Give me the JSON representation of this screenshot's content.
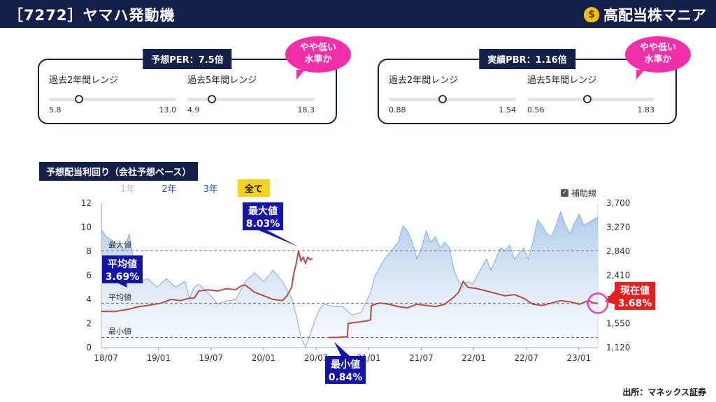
{
  "header": {
    "title": "［7272］ヤマハ発動機",
    "brand": "高配当株マニア",
    "brand_icon": "money-bag-icon"
  },
  "per_panel": {
    "title": "予想PER：7.5倍",
    "bubble": [
      "やや低い",
      "水準か"
    ],
    "ranges": [
      {
        "label": "過去2年間レンジ",
        "min": "5.8",
        "max": "13.0",
        "current": 7.5
      },
      {
        "label": "過去5年間レンジ",
        "min": "4.9",
        "max": "18.3",
        "current": 7.5
      }
    ]
  },
  "pbr_panel": {
    "title": "実績PBR：1.16倍",
    "bubble": [
      "やや低い",
      "水準か"
    ],
    "ranges": [
      {
        "label": "過去2年間レンジ",
        "min": "0.88",
        "max": "1.54",
        "current": 1.16
      },
      {
        "label": "過去5年間レンジ",
        "min": "0.56",
        "max": "1.83",
        "current": 1.16
      }
    ]
  },
  "chart_header": {
    "title": "予想配当利回り（会社予想ベース）",
    "tabs": [
      {
        "label": "1年",
        "state": "disabled"
      },
      {
        "label": "2年",
        "state": "normal"
      },
      {
        "label": "3年",
        "state": "normal"
      },
      {
        "label": "全て",
        "state": "active"
      }
    ],
    "aux_label": "補助線"
  },
  "chart_data": {
    "type": "line",
    "x_ticks": [
      "18/07",
      "19/01",
      "19/07",
      "20/01",
      "20/07",
      "21/01",
      "21/07",
      "22/01",
      "22/07",
      "23/01"
    ],
    "y_left_ticks": [
      "0",
      "2",
      "4",
      "6",
      "8",
      "10",
      "12"
    ],
    "y_right_ticks": [
      "1,120",
      "1,550",
      "1,980",
      "2,410",
      "2,840",
      "3,270",
      "3,700"
    ],
    "ylim_left": [
      0,
      12
    ],
    "ylim_right": [
      1120,
      3700
    ],
    "reference_lines": [
      {
        "label": "最大値",
        "value": 8.03
      },
      {
        "label": "平均値",
        "value": 3.69
      },
      {
        "label": "最小値",
        "value": 0.84
      }
    ],
    "series": [
      {
        "axis": "left",
        "color": "#b84a45",
        "points": [
          [
            0,
            3.0
          ],
          [
            3,
            3.0
          ],
          [
            6,
            3.2
          ],
          [
            8,
            3.4
          ],
          [
            10,
            3.5
          ],
          [
            13,
            3.7
          ],
          [
            15,
            4.0
          ],
          [
            17,
            3.9
          ],
          [
            19,
            4.1
          ],
          [
            20,
            4.1
          ],
          [
            21,
            4.7
          ],
          [
            23,
            4.8
          ],
          [
            25,
            4.7
          ],
          [
            27,
            4.9
          ],
          [
            29,
            4.8
          ],
          [
            30,
            5.1
          ],
          [
            31,
            5.2
          ],
          [
            33,
            4.6
          ],
          [
            35,
            4.3
          ],
          [
            37,
            4.0
          ],
          [
            39,
            3.9
          ],
          [
            40,
            4.3
          ],
          [
            41,
            5.0
          ],
          [
            41.5,
            6.2
          ],
          [
            42,
            7.0
          ],
          [
            42.5,
            8.03
          ],
          [
            43,
            7.2
          ],
          [
            43.5,
            7.5
          ],
          [
            44,
            7.0
          ],
          [
            44.5,
            7.5
          ],
          [
            45,
            7.3
          ],
          [
            45.5,
            7.4
          ],
          [
            null,
            null
          ],
          [
            49,
            0.84
          ],
          [
            51,
            0.84
          ],
          [
            53,
            0.9
          ],
          [
            53.2,
            2.0
          ],
          [
            55,
            2.1
          ],
          [
            57,
            2.2
          ],
          [
            58,
            2.3
          ],
          [
            58.2,
            3.5
          ],
          [
            60,
            3.7
          ],
          [
            62,
            3.6
          ],
          [
            64,
            3.4
          ],
          [
            66,
            3.3
          ],
          [
            68,
            3.6
          ],
          [
            70,
            3.5
          ],
          [
            72,
            3.4
          ],
          [
            74,
            3.6
          ],
          [
            76,
            4.2
          ],
          [
            77,
            4.6
          ],
          [
            78,
            5.5
          ],
          [
            79,
            5.0
          ],
          [
            81,
            4.9
          ],
          [
            83,
            4.7
          ],
          [
            85,
            4.5
          ],
          [
            87,
            4.3
          ],
          [
            89,
            4.4
          ],
          [
            91,
            4.1
          ],
          [
            93,
            3.6
          ],
          [
            95,
            3.5
          ],
          [
            97,
            3.7
          ],
          [
            99,
            3.9
          ],
          [
            101,
            3.8
          ],
          [
            103,
            3.6
          ],
          [
            105,
            3.9
          ],
          [
            106,
            3.7
          ],
          [
            107,
            3.68
          ]
        ]
      },
      {
        "axis": "right",
        "color": "#8ab8e3",
        "points": [
          [
            0,
            3230
          ],
          [
            1,
            3100
          ],
          [
            3,
            3000
          ],
          [
            5,
            2850
          ],
          [
            6,
            3150
          ],
          [
            7,
            2600
          ],
          [
            8,
            2300
          ],
          [
            10,
            2350
          ],
          [
            12,
            2200
          ],
          [
            14,
            2350
          ],
          [
            16,
            2200
          ],
          [
            18,
            2300
          ],
          [
            19,
            2000
          ],
          [
            20,
            2200
          ],
          [
            21,
            2250
          ],
          [
            23,
            2100
          ],
          [
            25,
            1900
          ],
          [
            27,
            1950
          ],
          [
            29,
            1980
          ],
          [
            31,
            2300
          ],
          [
            33,
            2450
          ],
          [
            35,
            2300
          ],
          [
            37,
            2500
          ],
          [
            39,
            2300
          ],
          [
            41,
            2000
          ],
          [
            42,
            1700
          ],
          [
            43,
            1300
          ],
          [
            44,
            1130
          ],
          [
            45,
            1350
          ],
          [
            46,
            1600
          ],
          [
            47,
            1800
          ],
          [
            48,
            1900
          ],
          [
            50,
            1850
          ],
          [
            52,
            1850
          ],
          [
            54,
            1700
          ],
          [
            56,
            1750
          ],
          [
            58,
            2100
          ],
          [
            59,
            2400
          ],
          [
            61,
            2700
          ],
          [
            63,
            2900
          ],
          [
            64,
            3000
          ],
          [
            65,
            3300
          ],
          [
            66,
            3200
          ],
          [
            67,
            3000
          ],
          [
            68,
            2700
          ],
          [
            69,
            2900
          ],
          [
            70,
            3200
          ],
          [
            71,
            3000
          ],
          [
            72,
            3100
          ],
          [
            73,
            2900
          ],
          [
            74,
            3000
          ],
          [
            75,
            2900
          ],
          [
            76,
            2500
          ],
          [
            77,
            2300
          ],
          [
            78,
            2200
          ],
          [
            79,
            2300
          ],
          [
            80,
            2250
          ],
          [
            81,
            2400
          ],
          [
            82,
            2550
          ],
          [
            83,
            2700
          ],
          [
            84,
            2500
          ],
          [
            85,
            2700
          ],
          [
            86,
            2900
          ],
          [
            87,
            2850
          ],
          [
            88,
            2950
          ],
          [
            89,
            2700
          ],
          [
            90,
            2800
          ],
          [
            91,
            2900
          ],
          [
            92,
            2700
          ],
          [
            93,
            3000
          ],
          [
            94,
            3400
          ],
          [
            95,
            3300
          ],
          [
            96,
            3150
          ],
          [
            97,
            3100
          ],
          [
            98,
            3300
          ],
          [
            99,
            3550
          ],
          [
            100,
            3300
          ],
          [
            101,
            3150
          ],
          [
            102,
            3350
          ],
          [
            103,
            3500
          ],
          [
            104,
            3300
          ],
          [
            105,
            3350
          ],
          [
            106,
            3400
          ],
          [
            107,
            3450
          ]
        ]
      }
    ],
    "callouts": [
      {
        "label": "最大値",
        "value": "8.03%",
        "style": "blue"
      },
      {
        "label": "平均値",
        "value": "3.69%",
        "style": "blue"
      },
      {
        "label": "最小値",
        "value": "0.84%",
        "style": "blue"
      },
      {
        "label": "現在値",
        "value": "3.68%",
        "style": "red"
      }
    ],
    "grid": false
  },
  "footer": {
    "source": "出所：マネックス証券"
  }
}
